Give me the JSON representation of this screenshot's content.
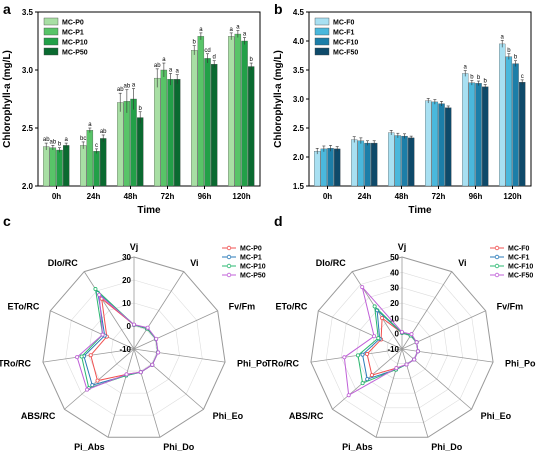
{
  "chart_data": [
    {
      "panel": "a",
      "type": "bar",
      "xlabel": "Time",
      "ylabel": "Chlorophyll-a (mg/L)",
      "ylim": [
        2.0,
        3.5
      ],
      "yticks": [
        2.0,
        2.5,
        3.0,
        3.5
      ],
      "yticks_labels": [
        "2.0",
        "2.5",
        "3.0",
        "3.5"
      ],
      "categories": [
        "0h",
        "24h",
        "48h",
        "72h",
        "96h",
        "120h"
      ],
      "legend_position": "top-left",
      "series": [
        {
          "name": "MC-P0",
          "color": "#a8dfa4",
          "values": [
            2.34,
            2.35,
            2.72,
            2.93,
            3.17,
            3.29
          ],
          "errors": [
            0.03,
            0.03,
            0.08,
            0.08,
            0.04,
            0.03
          ],
          "labels": [
            "ab",
            "bc",
            "ab",
            "ab",
            "b",
            "a"
          ]
        },
        {
          "name": "MC-P1",
          "color": "#58c468",
          "values": [
            2.33,
            2.48,
            2.73,
            3.0,
            3.29,
            3.31
          ],
          "errors": [
            0.02,
            0.02,
            0.1,
            0.06,
            0.03,
            0.03
          ],
          "labels": [
            "ab",
            "a",
            "ab",
            "a",
            "a",
            "a"
          ]
        },
        {
          "name": "MC-P10",
          "color": "#22a048",
          "values": [
            2.31,
            2.3,
            2.75,
            2.92,
            3.1,
            3.25
          ],
          "errors": [
            0.02,
            0.02,
            0.09,
            0.05,
            0.04,
            0.03
          ],
          "labels": [
            "b",
            "c",
            "a",
            "a",
            "cd",
            "a"
          ]
        },
        {
          "name": "MC-P50",
          "color": "#0a6a30",
          "values": [
            2.35,
            2.41,
            2.59,
            2.92,
            3.05,
            3.03
          ],
          "errors": [
            0.02,
            0.03,
            0.05,
            0.04,
            0.03,
            0.03
          ],
          "labels": [
            "a",
            "ab",
            "b",
            "a",
            "d",
            "b"
          ]
        }
      ]
    },
    {
      "panel": "b",
      "type": "bar",
      "xlabel": "Time",
      "ylabel": "Chlorophyll-a (mg/L)",
      "ylim": [
        1.5,
        4.5
      ],
      "yticks": [
        1.5,
        2.0,
        2.5,
        3.0,
        3.5,
        4.0,
        4.5
      ],
      "yticks_labels": [
        "1.5",
        "2.0",
        "2.5",
        "3.0",
        "3.5",
        "4.0",
        "4.5"
      ],
      "categories": [
        "0h",
        "24h",
        "48h",
        "72h",
        "96h",
        "120h"
      ],
      "legend_position": "top-left",
      "series": [
        {
          "name": "MC-F0",
          "color": "#a8e0f2",
          "values": [
            2.1,
            2.3,
            2.42,
            2.97,
            3.44,
            3.95
          ],
          "errors": [
            0.05,
            0.05,
            0.04,
            0.04,
            0.05,
            0.06
          ],
          "labels": [
            "",
            "",
            "",
            "",
            "a",
            "a"
          ]
        },
        {
          "name": "MC-F1",
          "color": "#4ab8dc",
          "values": [
            2.14,
            2.28,
            2.37,
            2.95,
            3.28,
            3.73
          ],
          "errors": [
            0.05,
            0.05,
            0.04,
            0.04,
            0.04,
            0.05
          ],
          "labels": [
            "",
            "",
            "",
            "",
            "b",
            "b"
          ]
        },
        {
          "name": "MC-F10",
          "color": "#1c7ea8",
          "values": [
            2.15,
            2.24,
            2.36,
            2.92,
            3.27,
            3.61
          ],
          "errors": [
            0.05,
            0.04,
            0.04,
            0.04,
            0.04,
            0.05
          ],
          "labels": [
            "",
            "",
            "",
            "",
            "b",
            "b"
          ]
        },
        {
          "name": "MC-F50",
          "color": "#0e4a6a",
          "values": [
            2.14,
            2.24,
            2.33,
            2.85,
            3.21,
            3.29
          ],
          "errors": [
            0.04,
            0.04,
            0.03,
            0.03,
            0.04,
            0.04
          ],
          "labels": [
            "",
            "",
            "",
            "",
            "b",
            "c"
          ]
        }
      ]
    },
    {
      "panel": "c",
      "type": "radar",
      "axes": [
        "Vj",
        "Vi",
        "Fv/Fm",
        "Phi_Po",
        "Phi_Eo",
        "Phi_Do",
        "Pi_Abs",
        "ABS/RC",
        "TRo/RC",
        "ETo/RC",
        "DIo/RC"
      ],
      "rlim": [
        -10,
        30
      ],
      "rticks": [
        -10,
        0,
        10,
        20,
        30
      ],
      "rticks_labels": [
        "-10",
        "0",
        "10",
        "20",
        "30"
      ],
      "legend_position": "top-right",
      "series": [
        {
          "name": "MC-P0",
          "color": "#f05050",
          "values": [
            0.5,
            0.5,
            0.5,
            0.5,
            0.5,
            0.5,
            1.5,
            11,
            9,
            3,
            16
          ]
        },
        {
          "name": "MC-P1",
          "color": "#2a7ab8",
          "values": [
            0.5,
            0.5,
            0.5,
            0.5,
            0.5,
            0.5,
            2,
            14,
            12,
            4,
            19
          ]
        },
        {
          "name": "MC-P10",
          "color": "#2ab870",
          "values": [
            0.5,
            0.5,
            0.5,
            0.5,
            0.5,
            0.5,
            2,
            16,
            13,
            5,
            21
          ]
        },
        {
          "name": "MC-P50",
          "color": "#c060d8",
          "values": [
            0.6,
            1,
            0.6,
            0.6,
            0.5,
            0.5,
            1.5,
            17,
            15,
            5,
            18
          ]
        }
      ]
    },
    {
      "panel": "d",
      "type": "radar",
      "axes": [
        "Vj",
        "Vi",
        "Fv/Fm",
        "Phi_Po",
        "Phi_Eo",
        "Phi_Do",
        "Pi_Abs",
        "ABS/RC",
        "TRo/RC",
        "ETo/RC",
        "DIo/RC"
      ],
      "rlim": [
        -10,
        50
      ],
      "rticks": [
        -10,
        0,
        10,
        20,
        30,
        40,
        50
      ],
      "rticks_labels": [
        "-10",
        "0",
        "10",
        "20",
        "30",
        "40",
        "50"
      ],
      "legend_position": "top-right",
      "series": [
        {
          "name": "MC-F0",
          "color": "#f05050",
          "values": [
            0.5,
            0.5,
            0.5,
            0.5,
            0.5,
            0.5,
            3,
            16,
            13,
            5,
            14
          ]
        },
        {
          "name": "MC-F1",
          "color": "#2a7ab8",
          "values": [
            0.5,
            0.5,
            0.5,
            0.5,
            0.5,
            0.5,
            4,
            20,
            16,
            6,
            20
          ]
        },
        {
          "name": "MC-F10",
          "color": "#2ab870",
          "values": [
            0.5,
            0.5,
            0.5,
            0.5,
            0.5,
            0.5,
            4,
            24,
            19,
            7,
            23
          ]
        },
        {
          "name": "MC-F50",
          "color": "#c060d8",
          "values": [
            1,
            1.5,
            0.5,
            0.5,
            0.5,
            0.5,
            3,
            36,
            28,
            10,
            38
          ]
        }
      ]
    }
  ]
}
